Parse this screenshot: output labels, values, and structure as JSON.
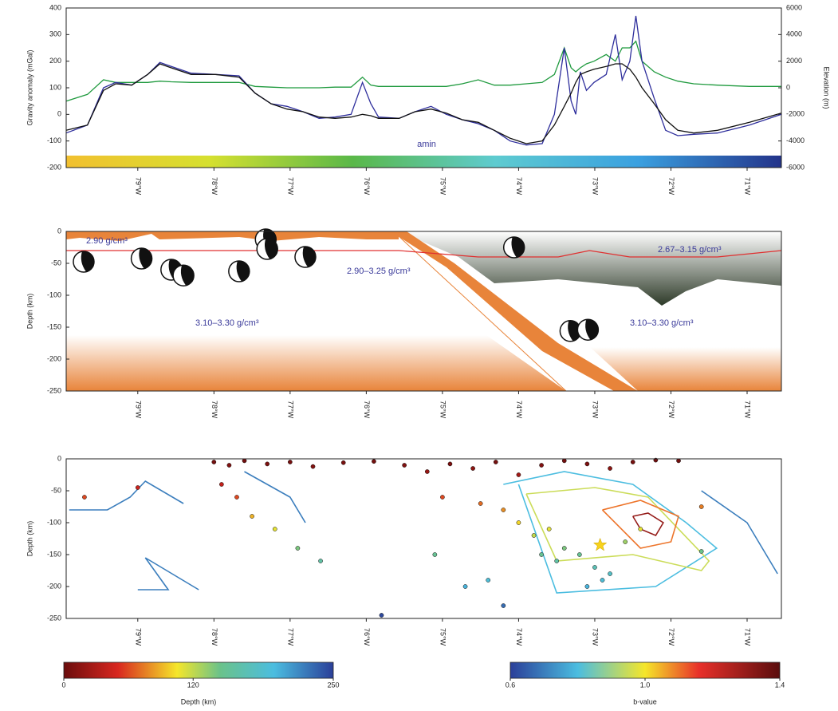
{
  "chart_data": [
    {
      "type": "line",
      "ylabel": "Gravity anomaly (mGal)",
      "y2label": "Elevation (m)",
      "annotation": "amin",
      "xlim": [
        -79.94,
        -70.55
      ],
      "xticks": [
        {
          "value": -79,
          "label": "79°W"
        },
        {
          "value": -78,
          "label": "78°W"
        },
        {
          "value": -77,
          "label": "77°W"
        },
        {
          "value": -76,
          "label": "76°W"
        },
        {
          "value": -75,
          "label": "75°W"
        },
        {
          "value": -74,
          "label": "74°W"
        },
        {
          "value": -73,
          "label": "73°W"
        },
        {
          "value": -72,
          "label": "72°W"
        },
        {
          "value": -71,
          "label": "71°W"
        }
      ],
      "ylim": [
        -200,
        400
      ],
      "yticks": [
        -200,
        -100,
        0,
        100,
        200,
        300,
        400
      ],
      "y2lim": [
        -6000,
        6000
      ],
      "y2ticks": [
        -6000,
        -4000,
        -2000,
        0,
        2000,
        4000,
        6000
      ],
      "x": [
        -79.94,
        -79.66,
        -79.45,
        -79.29,
        -79.08,
        -78.87,
        -78.71,
        -78.56,
        -78.3,
        -77.98,
        -77.67,
        -77.46,
        -77.25,
        -77.04,
        -76.83,
        -76.62,
        -76.41,
        -76.2,
        -76.05,
        -75.94,
        -75.84,
        -75.57,
        -75.36,
        -75.15,
        -74.95,
        -74.74,
        -74.53,
        -74.32,
        -74.11,
        -73.9,
        -73.69,
        -73.53,
        -73.4,
        -73.31,
        -73.25,
        -73.19,
        -73.11,
        -73.01,
        -72.85,
        -72.73,
        -72.64,
        -72.54,
        -72.46,
        -72.38,
        -72.22,
        -72.07,
        -71.91,
        -71.7,
        -71.39,
        -70.97,
        -70.55
      ],
      "series": [
        {
          "color": "#2e2e9c",
          "values": [
            -70,
            -40,
            100,
            120,
            110,
            150,
            195,
            180,
            155,
            150,
            145,
            80,
            40,
            30,
            10,
            -15,
            -10,
            0,
            120,
            40,
            -10,
            -15,
            10,
            30,
            0,
            -20,
            -35,
            -60,
            -100,
            -115,
            -110,
            0,
            250,
            50,
            0,
            160,
            90,
            120,
            150,
            300,
            130,
            200,
            370,
            200,
            60,
            -60,
            -80,
            -75,
            -70,
            -40,
            0
          ]
        },
        {
          "color": "#111111",
          "values": [
            -60,
            -40,
            90,
            115,
            110,
            150,
            190,
            175,
            150,
            150,
            140,
            80,
            40,
            20,
            10,
            -10,
            -15,
            -10,
            0,
            -5,
            -15,
            -15,
            10,
            20,
            5,
            -20,
            -30,
            -60,
            -90,
            -110,
            -100,
            -40,
            30,
            80,
            120,
            150,
            160,
            170,
            180,
            190,
            190,
            170,
            140,
            100,
            40,
            -20,
            -60,
            -70,
            -60,
            -30,
            5
          ]
        },
        {
          "color": "#1f9a3e",
          "axis": "y2",
          "values": [
            -1000,
            -500,
            600,
            400,
            400,
            400,
            500,
            450,
            400,
            400,
            400,
            100,
            50,
            0,
            0,
            0,
            50,
            50,
            800,
            200,
            100,
            100,
            100,
            100,
            100,
            300,
            600,
            200,
            200,
            300,
            400,
            1000,
            3000,
            1500,
            1200,
            1500,
            1800,
            2000,
            2500,
            2000,
            3000,
            3000,
            3500,
            2000,
            1200,
            800,
            500,
            300,
            200,
            100,
            100
          ]
        }
      ]
    },
    {
      "type": "section",
      "ylabel": "Depth (km)",
      "xlim": [
        -79.94,
        -70.55
      ],
      "xticks": [
        {
          "value": -79,
          "label": "79°W"
        },
        {
          "value": -78,
          "label": "78°W"
        },
        {
          "value": -77,
          "label": "77°W"
        },
        {
          "value": -76,
          "label": "76°W"
        },
        {
          "value": -75,
          "label": "75°W"
        },
        {
          "value": -74,
          "label": "74°W"
        },
        {
          "value": -73,
          "label": "73°W"
        },
        {
          "value": -72,
          "label": "72°W"
        },
        {
          "value": -71,
          "label": "71°W"
        }
      ],
      "ylim": [
        -250,
        0
      ],
      "yticks": [
        0,
        -50,
        -100,
        -150,
        -200,
        -250
      ],
      "annotations": [
        "2.90 g/cm³",
        "2.90–3.25 g/cm³",
        "3.10–3.30 g/cm³",
        "2.67–3.15 g/cm³",
        "3.10–3.30 g/cm³"
      ],
      "moho": {
        "color": "#e03030",
        "x": [
          -79.94,
          -75.57,
          -74.53,
          -73.48,
          -73.07,
          -72.54,
          -71.39,
          -70.55
        ],
        "values": [
          -30,
          -30,
          -40,
          -40,
          -30,
          -40,
          -40,
          -30
        ]
      },
      "mechanisms": {
        "x": [
          -79.71,
          -78.95,
          -78.56,
          -78.4,
          -77.67,
          -77.32,
          -77.3,
          -76.8,
          -74.06,
          -73.32,
          -73.09
        ],
        "y": [
          -47.5,
          -42.5,
          -60,
          -69,
          -62.5,
          -12.5,
          -27.5,
          -40,
          -25,
          -156,
          -154
        ]
      }
    },
    {
      "type": "seismicity",
      "ylabel": "Depth (km)",
      "xlim": [
        -79.94,
        -70.55
      ],
      "xticks": [
        {
          "value": -79,
          "label": "79°W"
        },
        {
          "value": -78,
          "label": "78°W"
        },
        {
          "value": -77,
          "label": "77°W"
        },
        {
          "value": -76,
          "label": "76°W"
        },
        {
          "value": -75,
          "label": "75°W"
        },
        {
          "value": -74,
          "label": "74°W"
        },
        {
          "value": -73,
          "label": "73°W"
        },
        {
          "value": -72,
          "label": "72°W"
        },
        {
          "value": -71,
          "label": "71°W"
        }
      ],
      "ylim": [
        -250,
        0
      ],
      "yticks": [
        0,
        -50,
        -100,
        -150,
        -200,
        -250
      ],
      "points": {
        "x": [
          -78.0,
          -77.8,
          -77.6,
          -77.3,
          -77.0,
          -76.7,
          -76.3,
          -75.9,
          -75.5,
          -75.2,
          -74.9,
          -74.6,
          -74.3,
          -74.0,
          -73.7,
          -73.4,
          -73.1,
          -72.8,
          -72.5,
          -72.2,
          -71.9,
          -77.9,
          -77.7,
          -77.5,
          -77.2,
          -76.9,
          -76.6,
          -79.0,
          -79.7,
          -75.0,
          -74.5,
          -74.2,
          -74.0,
          -73.8,
          -73.6,
          -73.4,
          -73.2,
          -73.0,
          -72.9,
          -73.1,
          -72.8,
          -73.5,
          -73.7,
          -72.6,
          -72.4,
          -75.1,
          -74.7,
          -74.4,
          -74.2,
          -75.8,
          -71.6,
          -71.6
        ],
        "y": [
          -5,
          -10,
          -3,
          -8,
          -5,
          -12,
          -6,
          -4,
          -10,
          -20,
          -8,
          -15,
          -5,
          -25,
          -10,
          -3,
          -8,
          -15,
          -5,
          -2,
          -3,
          -40,
          -60,
          -90,
          -110,
          -140,
          -160,
          -45,
          -60,
          -60,
          -70,
          -80,
          -100,
          -120,
          -110,
          -140,
          -150,
          -170,
          -190,
          -200,
          -180,
          -160,
          -150,
          -130,
          -110,
          -150,
          -200,
          -190,
          -230,
          -245,
          -145,
          -75
        ]
      },
      "mainshock": {
        "x": -72.93,
        "y": -135
      },
      "contours": [
        {
          "level": 0.7,
          "x": [
            -79.9,
            -79.4,
            -79.1,
            -78.9,
            -78.4
          ],
          "y": [
            -80,
            -80,
            -60,
            -35,
            -70
          ]
        },
        {
          "level": 0.7,
          "x": [
            -79.0,
            -78.6,
            -78.9,
            -78.2
          ],
          "y": [
            -205,
            -205,
            -155,
            -205
          ]
        },
        {
          "level": 0.7,
          "x": [
            -77.6,
            -77.0,
            -76.8
          ],
          "y": [
            -20,
            -60,
            -100
          ]
        },
        {
          "level": 0.7,
          "x": [
            -71.6,
            -71.0,
            -70.6
          ],
          "y": [
            -50,
            -100,
            -180
          ]
        },
        {
          "level": 0.8,
          "x": [
            -74.2,
            -73.4,
            -72.5,
            -71.8,
            -71.4,
            -72.2,
            -73.5,
            -74.0
          ],
          "y": [
            -40,
            -20,
            -40,
            -100,
            -140,
            -200,
            -210,
            -40
          ]
        },
        {
          "level": 0.95,
          "x": [
            -73.9,
            -73.0,
            -72.3,
            -71.5,
            -71.6,
            -72.5,
            -73.5,
            -73.9
          ],
          "y": [
            -55,
            -45,
            -60,
            -160,
            -175,
            -150,
            -160,
            -55
          ]
        },
        {
          "level": 1.1,
          "x": [
            -72.9,
            -72.4,
            -71.9,
            -72.0,
            -72.4,
            -72.9
          ],
          "y": [
            -80,
            -65,
            -90,
            -130,
            -140,
            -80
          ]
        },
        {
          "level": 1.3,
          "x": [
            -72.5,
            -72.3,
            -72.1,
            -72.2,
            -72.4,
            -72.5
          ],
          "y": [
            -90,
            -85,
            -100,
            -120,
            -110,
            -90
          ]
        }
      ]
    },
    {
      "type": "colorbar",
      "label": "Depth (km)",
      "lim": [
        0,
        250
      ],
      "ticks": [
        0,
        120,
        250
      ]
    },
    {
      "type": "colorbar",
      "label": "b-value",
      "lim": [
        0.6,
        1.4
      ],
      "ticks": [
        0.6,
        {
          "value": 1,
          "label": "1.0"
        },
        1.4
      ]
    }
  ]
}
